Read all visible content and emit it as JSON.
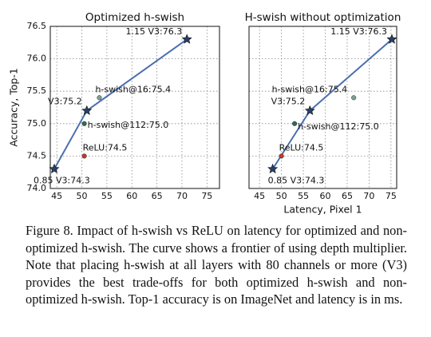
{
  "chart_data": [
    {
      "type": "line",
      "title": "Optimized h-swish",
      "y_label": "Accuracy, Top-1",
      "xlim": [
        43.7,
        77.5
      ],
      "xticks": [
        45,
        50,
        55,
        60,
        65,
        70,
        75
      ],
      "ylim": [
        74.0,
        76.5
      ],
      "yticks": [
        {
          "value": 74.0,
          "label": "74.0"
        },
        74.5,
        {
          "value": 75.0,
          "label": "75.0"
        },
        75.5,
        {
          "value": 76.0,
          "label": "76.0"
        },
        76.5
      ],
      "grid": true,
      "series": [
        {
          "color": "#4a6fb0",
          "marker": "star",
          "x": [
            44.5,
            51,
            71
          ],
          "values": [
            74.3,
            75.2,
            76.3
          ],
          "value_labels": [
            "0.85 V3:74.3",
            "V3:75.2",
            "1.15 V3:76.3"
          ]
        }
      ],
      "points": [
        {
          "x": 53.5,
          "y": 75.4,
          "label": "h-swish@16:75.4",
          "color": "#7fa08f"
        },
        {
          "x": 50.5,
          "y": 75.0,
          "label": "h-swish@112:75.0",
          "color": "#2f6b5a"
        },
        {
          "x": 50.5,
          "y": 74.5,
          "label": "ReLU:74.5",
          "color": "#c0392b"
        }
      ]
    },
    {
      "type": "line",
      "title": "H-swish without optimization",
      "x_label": "Latency, Pixel 1",
      "xlim": [
        42.6,
        76.3
      ],
      "xticks": [
        45,
        50,
        55,
        60,
        65,
        70,
        75
      ],
      "ylim": [
        74.0,
        76.5
      ],
      "grid": true,
      "series": [
        {
          "color": "#4a6fb0",
          "marker": "star",
          "x": [
            48,
            56.5,
            75.2
          ],
          "values": [
            74.3,
            75.2,
            76.3
          ],
          "value_labels": [
            "0.85 V3:74.3",
            "V3:75.2",
            "1.15 V3:76.3"
          ]
        }
      ],
      "points": [
        {
          "x": 66.5,
          "y": 75.4,
          "label": "h-swish@16:75.4",
          "color": "#7fa08f"
        },
        {
          "x": 53,
          "y": 75.0,
          "label": "h-swish@112:75.0",
          "color": "#2f6b5a"
        },
        {
          "x": 50,
          "y": 74.5,
          "label": "ReLU:74.5",
          "color": "#c0392b"
        }
      ]
    }
  ],
  "caption": "Figure 8. Impact of h-swish vs ReLU on latency for optimized and non-optimized h-swish. The curve shows a frontier of using depth multiplier. Note that placing h-swish at all layers with 80 channels or more (V3) provides the best trade-offs for both optimized h-swish and non-optimized h-swish. Top-1 accuracy is on ImageNet and latency is in ms."
}
